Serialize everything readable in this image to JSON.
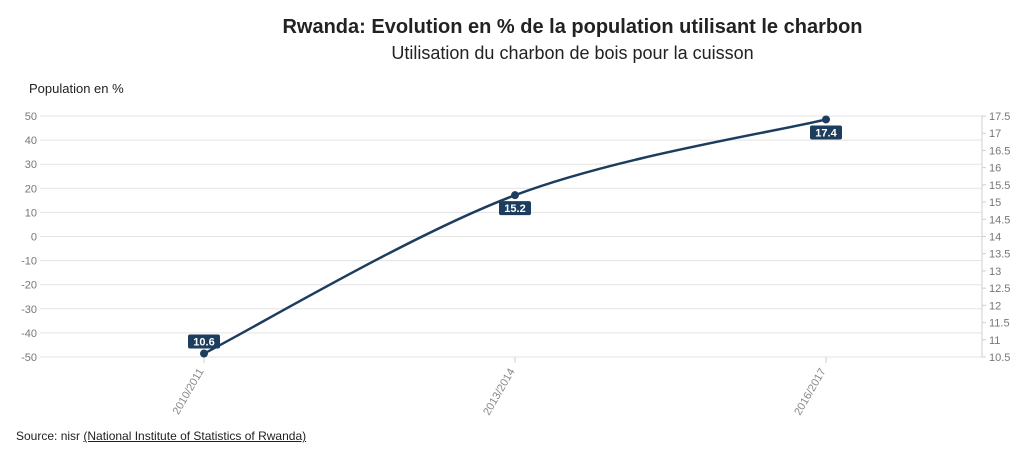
{
  "header": {
    "title": "Rwanda: Evolution en % de la population utilisant le charbon",
    "subtitle": "Utilisation du charbon de bois pour la cuisson"
  },
  "source": {
    "prefix": "Source: nisr ",
    "link_text": "(National Institute of Statistics of Rwanda)"
  },
  "colors": {
    "line": "#1d3d5e",
    "grid": "#e3e3e3",
    "label_bg": "#1d3d5e"
  },
  "chart_data": {
    "type": "line",
    "title": "Rwanda: Evolution en % de la population utilisant le charbon",
    "subtitle": "Utilisation du charbon de bois pour la cuisson",
    "ylabel": "Population en %",
    "categories": [
      "2010/2011",
      "2013/2014",
      "2016/2017"
    ],
    "series": [
      {
        "values": [
          10.6,
          15.2,
          17.4
        ]
      }
    ],
    "data_labels": [
      "10.6",
      "15.2",
      "17.4"
    ],
    "y_left": {
      "range": [
        -50,
        50
      ],
      "ticks": [
        "50",
        "40",
        "30",
        "20",
        "10",
        "0",
        "-10",
        "-20",
        "-30",
        "-40",
        "-50"
      ]
    },
    "y_right": {
      "range": [
        10.5,
        17.5
      ],
      "ticks": [
        "17.5",
        "17",
        "16.5",
        "16",
        "15.5",
        "15",
        "14.5",
        "14",
        "13.5",
        "13",
        "12.5",
        "12",
        "11.5",
        "11",
        "10.5"
      ]
    },
    "grid": true,
    "legend": "none"
  }
}
